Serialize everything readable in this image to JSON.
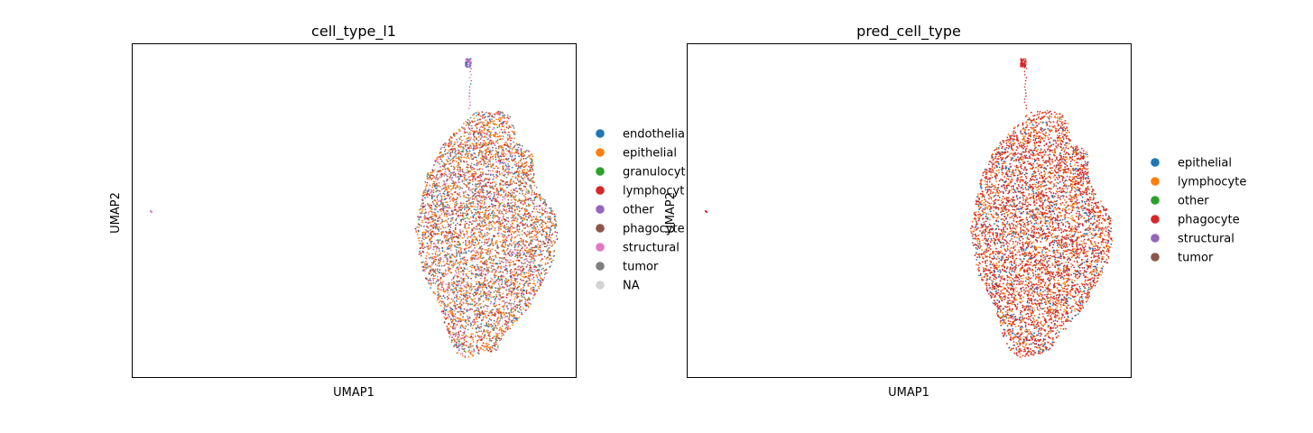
{
  "chart_data": [
    {
      "type": "scatter",
      "title": "cell_type_l1",
      "xlabel": "UMAP1",
      "ylabel": "UMAP2",
      "grid": false,
      "ticks": false,
      "legend": {
        "placement": "right",
        "entries": [
          {
            "name": "endothelial",
            "label": "endothelia",
            "color": "#1f77b4"
          },
          {
            "name": "epithelial",
            "label": "epithelial",
            "color": "#ff7f0e"
          },
          {
            "name": "granulocyte",
            "label": "granulocyt",
            "color": "#2ca02c"
          },
          {
            "name": "lymphocyte",
            "label": "lymphocyt",
            "color": "#d62728"
          },
          {
            "name": "other",
            "label": "other",
            "color": "#9467bd"
          },
          {
            "name": "phagocyte",
            "label": "phagocyte",
            "color": "#8c564b"
          },
          {
            "name": "structural",
            "label": "structural",
            "color": "#e377c2"
          },
          {
            "name": "tumor",
            "label": "tumor",
            "color": "#7f7f7f"
          },
          {
            "name": "NA",
            "label": "NA",
            "color": "#d3d3d3"
          }
        ]
      },
      "cloud_mix": {
        "epithelial": 0.34,
        "tumor": 0.22,
        "lymphocyte": 0.16,
        "structural": 0.12,
        "endothelial": 0.08,
        "phagocyte": 0.05,
        "other": 0.02,
        "granulocyte": 0.01
      },
      "tip_mix": {
        "structural": 0.4,
        "other": 0.35,
        "endothelial": 0.25
      },
      "outlier_color": "#e377c2"
    },
    {
      "type": "scatter",
      "title": "pred_cell_type",
      "xlabel": "UMAP1",
      "ylabel": "UMAP2",
      "grid": false,
      "ticks": false,
      "legend": {
        "placement": "right",
        "entries": [
          {
            "name": "epithelial",
            "label": "epithelial",
            "color": "#1f77b4"
          },
          {
            "name": "lymphocyte",
            "label": "lymphocyte",
            "color": "#ff7f0e"
          },
          {
            "name": "other",
            "label": "other",
            "color": "#2ca02c"
          },
          {
            "name": "phagocyte",
            "label": "phagocyte",
            "color": "#d62728"
          },
          {
            "name": "structural",
            "label": "structural",
            "color": "#9467bd"
          },
          {
            "name": "tumor",
            "label": "tumor",
            "color": "#8c564b"
          }
        ]
      },
      "cloud_mix": {
        "phagocyte": 0.58,
        "lymphocyte": 0.27,
        "epithelial": 0.13,
        "tumor": 0.02
      },
      "tip_mix": {
        "phagocyte": 1.0
      },
      "outlier_color": "#d62728"
    }
  ]
}
